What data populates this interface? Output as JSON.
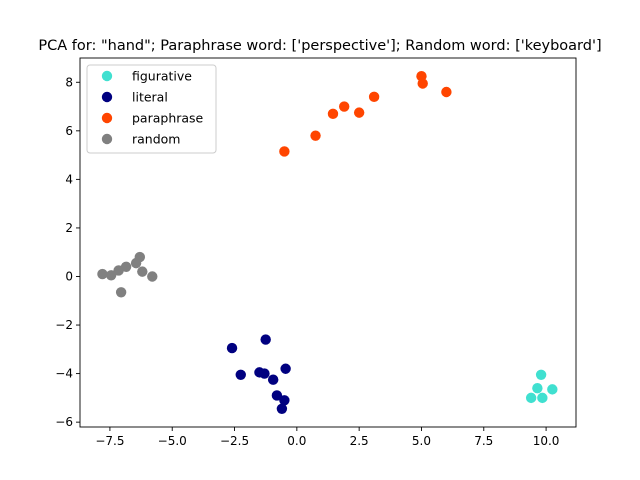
{
  "chart_data": {
    "type": "scatter",
    "title": "PCA for: \"hand\"; Paraphrase word: ['perspective']; Random word: ['keyboard']",
    "xlabel": "",
    "ylabel": "",
    "xlim": [
      -8.7,
      11.2
    ],
    "ylim": [
      -6.2,
      9.0
    ],
    "xticks": [
      -7.5,
      -5.0,
      -2.5,
      0.0,
      2.5,
      5.0,
      7.5,
      10.0
    ],
    "xtick_labels": [
      "−7.5",
      "−5.0",
      "−2.5",
      "0.0",
      "2.5",
      "5.0",
      "7.5",
      "10.0"
    ],
    "yticks": [
      -6,
      -4,
      -2,
      0,
      2,
      4,
      6,
      8
    ],
    "ytick_labels": [
      "−6",
      "−4",
      "−2",
      "0",
      "2",
      "4",
      "6",
      "8"
    ],
    "grid": false,
    "legend_position": "upper-left",
    "series": [
      {
        "name": "figurative",
        "color": "#40e0d0",
        "points": [
          [
            9.8,
            -4.05
          ],
          [
            9.65,
            -4.6
          ],
          [
            10.25,
            -4.65
          ],
          [
            9.4,
            -5.0
          ],
          [
            9.85,
            -5.0
          ]
        ]
      },
      {
        "name": "literal",
        "color": "#000080",
        "points": [
          [
            -2.6,
            -2.95
          ],
          [
            -1.25,
            -2.6
          ],
          [
            -2.25,
            -4.05
          ],
          [
            -1.5,
            -3.95
          ],
          [
            -1.3,
            -4.0
          ],
          [
            -0.95,
            -4.25
          ],
          [
            -0.45,
            -3.8
          ],
          [
            -0.8,
            -4.9
          ],
          [
            -0.5,
            -5.1
          ],
          [
            -0.6,
            -5.45
          ]
        ]
      },
      {
        "name": "paraphrase",
        "color": "#ff4500",
        "points": [
          [
            5.0,
            8.25
          ],
          [
            5.05,
            7.95
          ],
          [
            6.0,
            7.6
          ],
          [
            3.1,
            7.4
          ],
          [
            1.9,
            7.0
          ],
          [
            1.45,
            6.7
          ],
          [
            2.5,
            6.75
          ],
          [
            0.75,
            5.8
          ],
          [
            -0.5,
            5.15
          ]
        ]
      },
      {
        "name": "random",
        "color": "#808080",
        "points": [
          [
            -7.8,
            0.1
          ],
          [
            -7.45,
            0.05
          ],
          [
            -7.15,
            0.25
          ],
          [
            -6.85,
            0.4
          ],
          [
            -6.45,
            0.55
          ],
          [
            -6.3,
            0.8
          ],
          [
            -6.2,
            0.2
          ],
          [
            -5.8,
            0.0
          ],
          [
            -7.05,
            -0.65
          ]
        ]
      }
    ]
  }
}
